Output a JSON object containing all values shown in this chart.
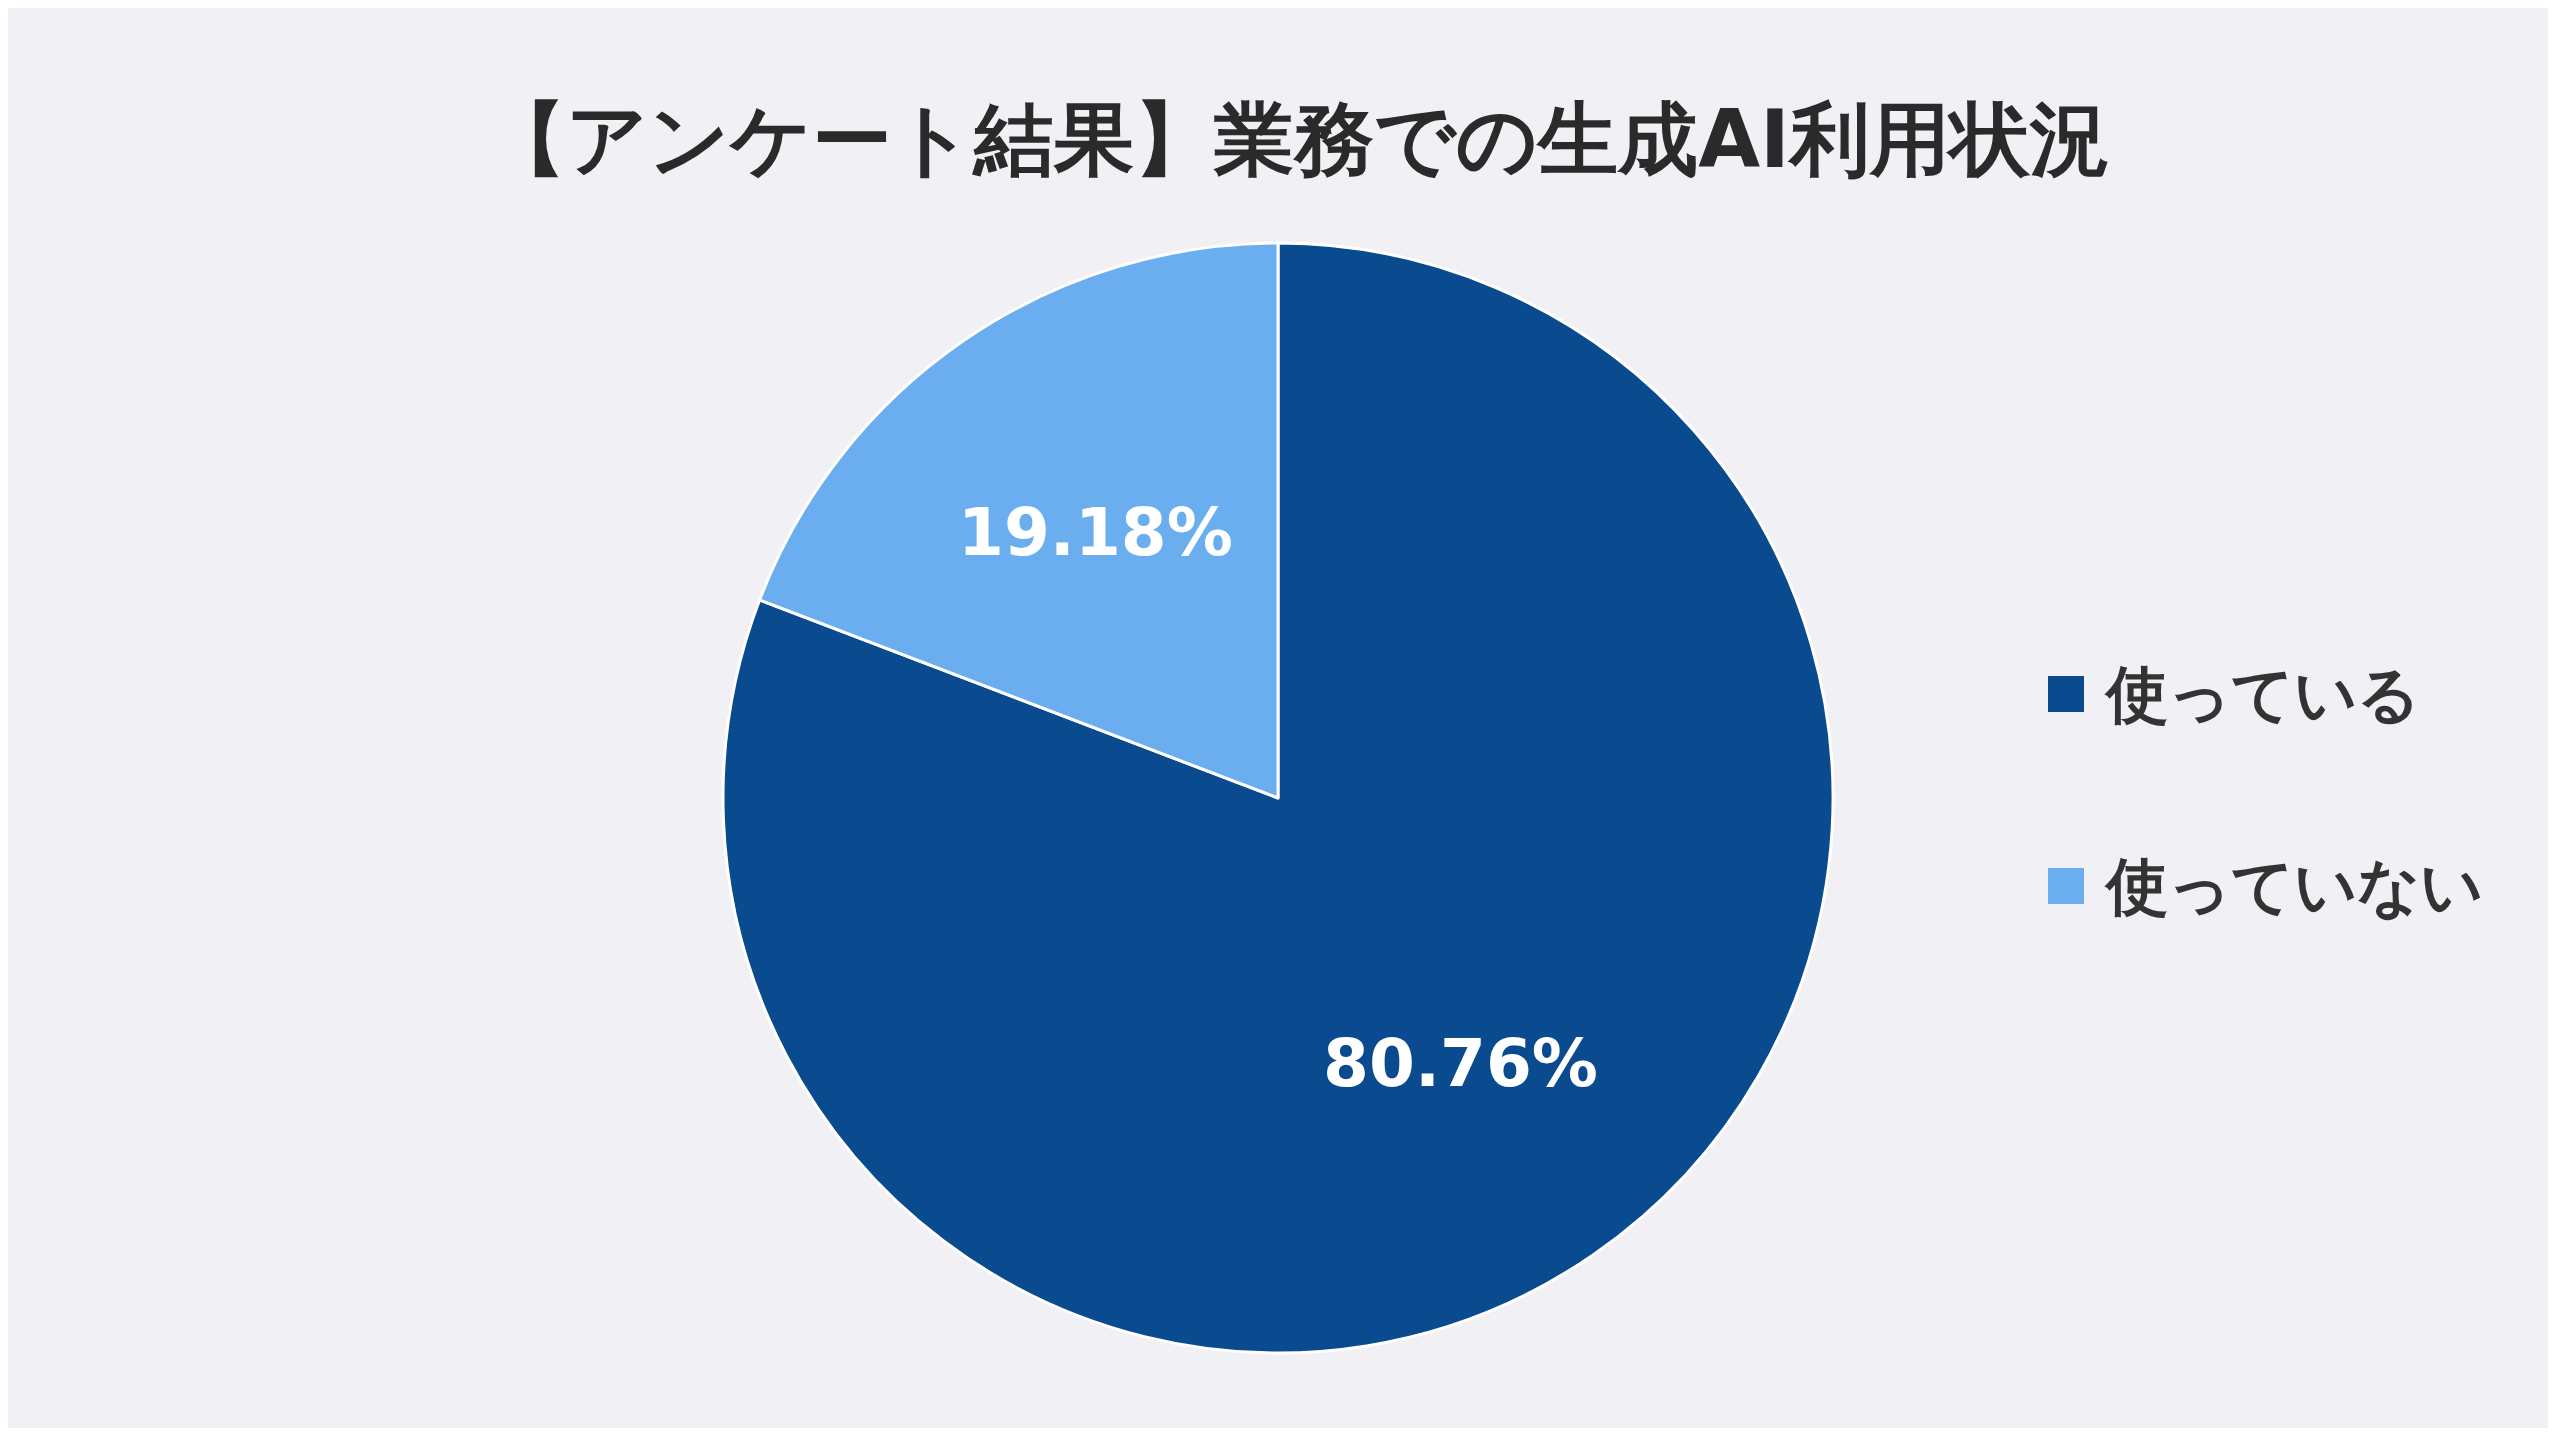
{
  "chart_data": {
    "type": "pie",
    "title": "【アンケート結果】業務での生成AI利用状況",
    "categories": [
      "使っている",
      "使っていない"
    ],
    "values": [
      80.76,
      19.18
    ],
    "colors": [
      "#0a4a8f",
      "#6aaef0"
    ],
    "value_labels": [
      "80.76%",
      "19.18%"
    ],
    "legend": "right"
  }
}
